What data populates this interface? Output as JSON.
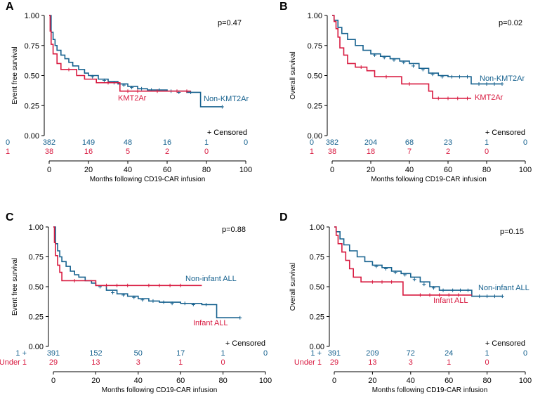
{
  "colors": {
    "series1": "#17628f",
    "series2": "#d8193f",
    "axis": "#000000"
  },
  "censored_label": "+ Censored",
  "chart_data": [
    {
      "type": "line",
      "panel": "A",
      "p_value": "p=0.47",
      "ylabel": "Event free survival",
      "xlabel": "Months following CD19-CAR infusion",
      "xlim": [
        0,
        100
      ],
      "ylim": [
        0,
        1
      ],
      "x_ticks": [
        0,
        20,
        40,
        60,
        80,
        100
      ],
      "y_ticks": [
        "0.00",
        "0.25",
        "0.50",
        "0.75",
        "1.00"
      ],
      "series": [
        {
          "name": "Non-KMT2Ar",
          "color_key": "series1",
          "points": [
            [
              0,
              1.0
            ],
            [
              1,
              0.86
            ],
            [
              2,
              0.8
            ],
            [
              3,
              0.75
            ],
            [
              4,
              0.71
            ],
            [
              6,
              0.67
            ],
            [
              8,
              0.64
            ],
            [
              10,
              0.61
            ],
            [
              12,
              0.58
            ],
            [
              15,
              0.55
            ],
            [
              18,
              0.52
            ],
            [
              20,
              0.5
            ],
            [
              25,
              0.47
            ],
            [
              30,
              0.45
            ],
            [
              35,
              0.43
            ],
            [
              40,
              0.41
            ],
            [
              45,
              0.39
            ],
            [
              50,
              0.38
            ],
            [
              60,
              0.37
            ],
            [
              70,
              0.36
            ],
            [
              77,
              0.36
            ],
            [
              77,
              0.24
            ],
            [
              88,
              0.24
            ]
          ],
          "censor": [
            [
              22,
              0.49
            ],
            [
              28,
              0.46
            ],
            [
              33,
              0.44
            ],
            [
              38,
              0.42
            ],
            [
              42,
              0.4
            ],
            [
              47,
              0.39
            ],
            [
              52,
              0.38
            ],
            [
              56,
              0.38
            ],
            [
              62,
              0.37
            ],
            [
              66,
              0.36
            ],
            [
              72,
              0.36
            ],
            [
              88,
              0.24
            ]
          ]
        },
        {
          "name": "KMT2Ar",
          "color_key": "series2",
          "points": [
            [
              0,
              1.0
            ],
            [
              0.5,
              0.87
            ],
            [
              1,
              0.76
            ],
            [
              2,
              0.68
            ],
            [
              4,
              0.6
            ],
            [
              6,
              0.55
            ],
            [
              14,
              0.5
            ],
            [
              18,
              0.47
            ],
            [
              24,
              0.44
            ],
            [
              36,
              0.37
            ],
            [
              60,
              0.37
            ],
            [
              72,
              0.37
            ]
          ],
          "censor": [
            [
              10,
              0.55
            ],
            [
              30,
              0.44
            ],
            [
              40,
              0.37
            ],
            [
              45,
              0.37
            ],
            [
              55,
              0.37
            ],
            [
              65,
              0.37
            ],
            [
              70,
              0.37
            ]
          ]
        }
      ],
      "risk_table": [
        {
          "label": "0",
          "color_key": "series1",
          "values": [
            "382",
            "149",
            "48",
            "16",
            "1",
            "0"
          ]
        },
        {
          "label": "1",
          "color_key": "series2",
          "values": [
            "38",
            "16",
            "5",
            "2",
            "0"
          ]
        }
      ]
    },
    {
      "type": "line",
      "panel": "B",
      "p_value": "p=0.02",
      "ylabel": "Overall survival",
      "xlabel": "Months following CD19-CAR infusion",
      "xlim": [
        0,
        100
      ],
      "ylim": [
        0,
        1
      ],
      "x_ticks": [
        0,
        20,
        40,
        60,
        80,
        100
      ],
      "y_ticks": [
        "0.00",
        "0.25",
        "0.50",
        "0.75",
        "1.00"
      ],
      "series": [
        {
          "name": "Non-KMT2Ar",
          "color_key": "series1",
          "points": [
            [
              0,
              1.0
            ],
            [
              1,
              0.96
            ],
            [
              3,
              0.9
            ],
            [
              5,
              0.85
            ],
            [
              8,
              0.8
            ],
            [
              12,
              0.75
            ],
            [
              16,
              0.71
            ],
            [
              20,
              0.68
            ],
            [
              25,
              0.66
            ],
            [
              30,
              0.64
            ],
            [
              35,
              0.62
            ],
            [
              40,
              0.6
            ],
            [
              45,
              0.56
            ],
            [
              50,
              0.52
            ],
            [
              55,
              0.5
            ],
            [
              60,
              0.49
            ],
            [
              72,
              0.49
            ],
            [
              72,
              0.43
            ],
            [
              88,
              0.43
            ]
          ],
          "censor": [
            [
              22,
              0.67
            ],
            [
              27,
              0.65
            ],
            [
              32,
              0.63
            ],
            [
              37,
              0.61
            ],
            [
              42,
              0.58
            ],
            [
              47,
              0.55
            ],
            [
              52,
              0.51
            ],
            [
              57,
              0.49
            ],
            [
              62,
              0.49
            ],
            [
              66,
              0.49
            ],
            [
              70,
              0.49
            ],
            [
              76,
              0.43
            ],
            [
              80,
              0.43
            ],
            [
              84,
              0.43
            ],
            [
              88,
              0.43
            ]
          ]
        },
        {
          "name": "KMT2Ar",
          "color_key": "series2",
          "points": [
            [
              0,
              1.0
            ],
            [
              1,
              0.95
            ],
            [
              2,
              0.89
            ],
            [
              3,
              0.82
            ],
            [
              4,
              0.73
            ],
            [
              6,
              0.67
            ],
            [
              8,
              0.6
            ],
            [
              12,
              0.57
            ],
            [
              18,
              0.54
            ],
            [
              22,
              0.49
            ],
            [
              36,
              0.43
            ],
            [
              50,
              0.37
            ],
            [
              52,
              0.31
            ],
            [
              72,
              0.31
            ]
          ],
          "censor": [
            [
              15,
              0.57
            ],
            [
              28,
              0.49
            ],
            [
              40,
              0.43
            ],
            [
              55,
              0.31
            ],
            [
              60,
              0.31
            ],
            [
              65,
              0.31
            ],
            [
              70,
              0.31
            ]
          ]
        }
      ],
      "risk_table": [
        {
          "label": "0",
          "color_key": "series1",
          "values": [
            "382",
            "204",
            "68",
            "23",
            "1",
            "0"
          ]
        },
        {
          "label": "1",
          "color_key": "series2",
          "values": [
            "38",
            "18",
            "7",
            "2",
            "0"
          ]
        }
      ]
    },
    {
      "type": "line",
      "panel": "C",
      "p_value": "p=0.88",
      "ylabel": "Event free survival",
      "xlabel": "Months following CD19-CAR infusion",
      "xlim": [
        0,
        100
      ],
      "ylim": [
        0,
        1
      ],
      "x_ticks": [
        0,
        20,
        40,
        60,
        80,
        100
      ],
      "y_ticks": [
        "0.00",
        "0.25",
        "0.50",
        "0.75",
        "1.00"
      ],
      "series": [
        {
          "name": "Non-infant ALL",
          "color_key": "series1",
          "points": [
            [
              0,
              1.0
            ],
            [
              1,
              0.86
            ],
            [
              2,
              0.8
            ],
            [
              3,
              0.75
            ],
            [
              4,
              0.71
            ],
            [
              6,
              0.67
            ],
            [
              8,
              0.63
            ],
            [
              10,
              0.6
            ],
            [
              12,
              0.58
            ],
            [
              15,
              0.55
            ],
            [
              18,
              0.53
            ],
            [
              20,
              0.51
            ],
            [
              25,
              0.47
            ],
            [
              30,
              0.44
            ],
            [
              35,
              0.42
            ],
            [
              40,
              0.4
            ],
            [
              45,
              0.38
            ],
            [
              50,
              0.37
            ],
            [
              60,
              0.36
            ],
            [
              70,
              0.35
            ],
            [
              77,
              0.35
            ],
            [
              77,
              0.24
            ],
            [
              88,
              0.24
            ]
          ],
          "censor": [
            [
              22,
              0.5
            ],
            [
              28,
              0.45
            ],
            [
              33,
              0.43
            ],
            [
              38,
              0.41
            ],
            [
              42,
              0.39
            ],
            [
              47,
              0.38
            ],
            [
              52,
              0.37
            ],
            [
              56,
              0.36
            ],
            [
              62,
              0.36
            ],
            [
              66,
              0.35
            ],
            [
              72,
              0.35
            ],
            [
              88,
              0.24
            ]
          ]
        },
        {
          "name": "Infant ALL",
          "color_key": "series2",
          "points": [
            [
              0,
              1.0
            ],
            [
              0.5,
              0.87
            ],
            [
              1,
              0.76
            ],
            [
              2,
              0.68
            ],
            [
              3,
              0.62
            ],
            [
              4,
              0.55
            ],
            [
              18,
              0.55
            ],
            [
              20,
              0.51
            ],
            [
              70,
              0.51
            ]
          ],
          "censor": [
            [
              10,
              0.55
            ],
            [
              25,
              0.51
            ],
            [
              30,
              0.51
            ],
            [
              35,
              0.51
            ],
            [
              45,
              0.51
            ],
            [
              50,
              0.51
            ],
            [
              55,
              0.51
            ],
            [
              60,
              0.51
            ]
          ]
        }
      ],
      "risk_table": [
        {
          "label": "1 +",
          "color_key": "series1",
          "values": [
            "391",
            "152",
            "50",
            "17",
            "1",
            "0"
          ]
        },
        {
          "label": "Under 1",
          "color_key": "series2",
          "values": [
            "29",
            "13",
            "3",
            "1",
            "0"
          ]
        }
      ]
    },
    {
      "type": "line",
      "panel": "D",
      "p_value": "p=0.15",
      "ylabel": "Overall survival",
      "xlabel": "Months following CD19-CAR infusion",
      "xlim": [
        0,
        100
      ],
      "ylim": [
        0,
        1
      ],
      "x_ticks": [
        0,
        20,
        40,
        60,
        80,
        100
      ],
      "y_ticks": [
        "0.00",
        "0.25",
        "0.50",
        "0.75",
        "1.00"
      ],
      "series": [
        {
          "name": "Non-infant ALL",
          "color_key": "series1",
          "points": [
            [
              0,
              1.0
            ],
            [
              1,
              0.96
            ],
            [
              3,
              0.9
            ],
            [
              5,
              0.85
            ],
            [
              8,
              0.8
            ],
            [
              12,
              0.75
            ],
            [
              16,
              0.71
            ],
            [
              20,
              0.68
            ],
            [
              25,
              0.66
            ],
            [
              30,
              0.63
            ],
            [
              35,
              0.61
            ],
            [
              40,
              0.58
            ],
            [
              45,
              0.54
            ],
            [
              50,
              0.5
            ],
            [
              55,
              0.47
            ],
            [
              72,
              0.47
            ],
            [
              72,
              0.42
            ],
            [
              88,
              0.42
            ]
          ],
          "censor": [
            [
              22,
              0.67
            ],
            [
              27,
              0.65
            ],
            [
              32,
              0.62
            ],
            [
              37,
              0.6
            ],
            [
              42,
              0.56
            ],
            [
              47,
              0.52
            ],
            [
              52,
              0.49
            ],
            [
              57,
              0.47
            ],
            [
              62,
              0.47
            ],
            [
              66,
              0.47
            ],
            [
              70,
              0.47
            ],
            [
              76,
              0.42
            ],
            [
              80,
              0.42
            ],
            [
              84,
              0.42
            ],
            [
              88,
              0.42
            ]
          ]
        },
        {
          "name": "Infant ALL",
          "color_key": "series2",
          "points": [
            [
              0,
              1.0
            ],
            [
              1,
              0.93
            ],
            [
              2,
              0.86
            ],
            [
              4,
              0.79
            ],
            [
              6,
              0.72
            ],
            [
              8,
              0.65
            ],
            [
              10,
              0.58
            ],
            [
              14,
              0.54
            ],
            [
              36,
              0.54
            ],
            [
              36,
              0.43
            ],
            [
              72,
              0.43
            ]
          ],
          "censor": [
            [
              20,
              0.54
            ],
            [
              25,
              0.54
            ],
            [
              30,
              0.54
            ],
            [
              45,
              0.43
            ],
            [
              50,
              0.43
            ],
            [
              55,
              0.43
            ],
            [
              60,
              0.43
            ],
            [
              65,
              0.43
            ]
          ]
        }
      ],
      "risk_table": [
        {
          "label": "1 +",
          "color_key": "series1",
          "values": [
            "391",
            "209",
            "72",
            "24",
            "1",
            "0"
          ]
        },
        {
          "label": "Under 1",
          "color_key": "series2",
          "values": [
            "29",
            "13",
            "3",
            "1",
            "0"
          ]
        }
      ]
    }
  ]
}
